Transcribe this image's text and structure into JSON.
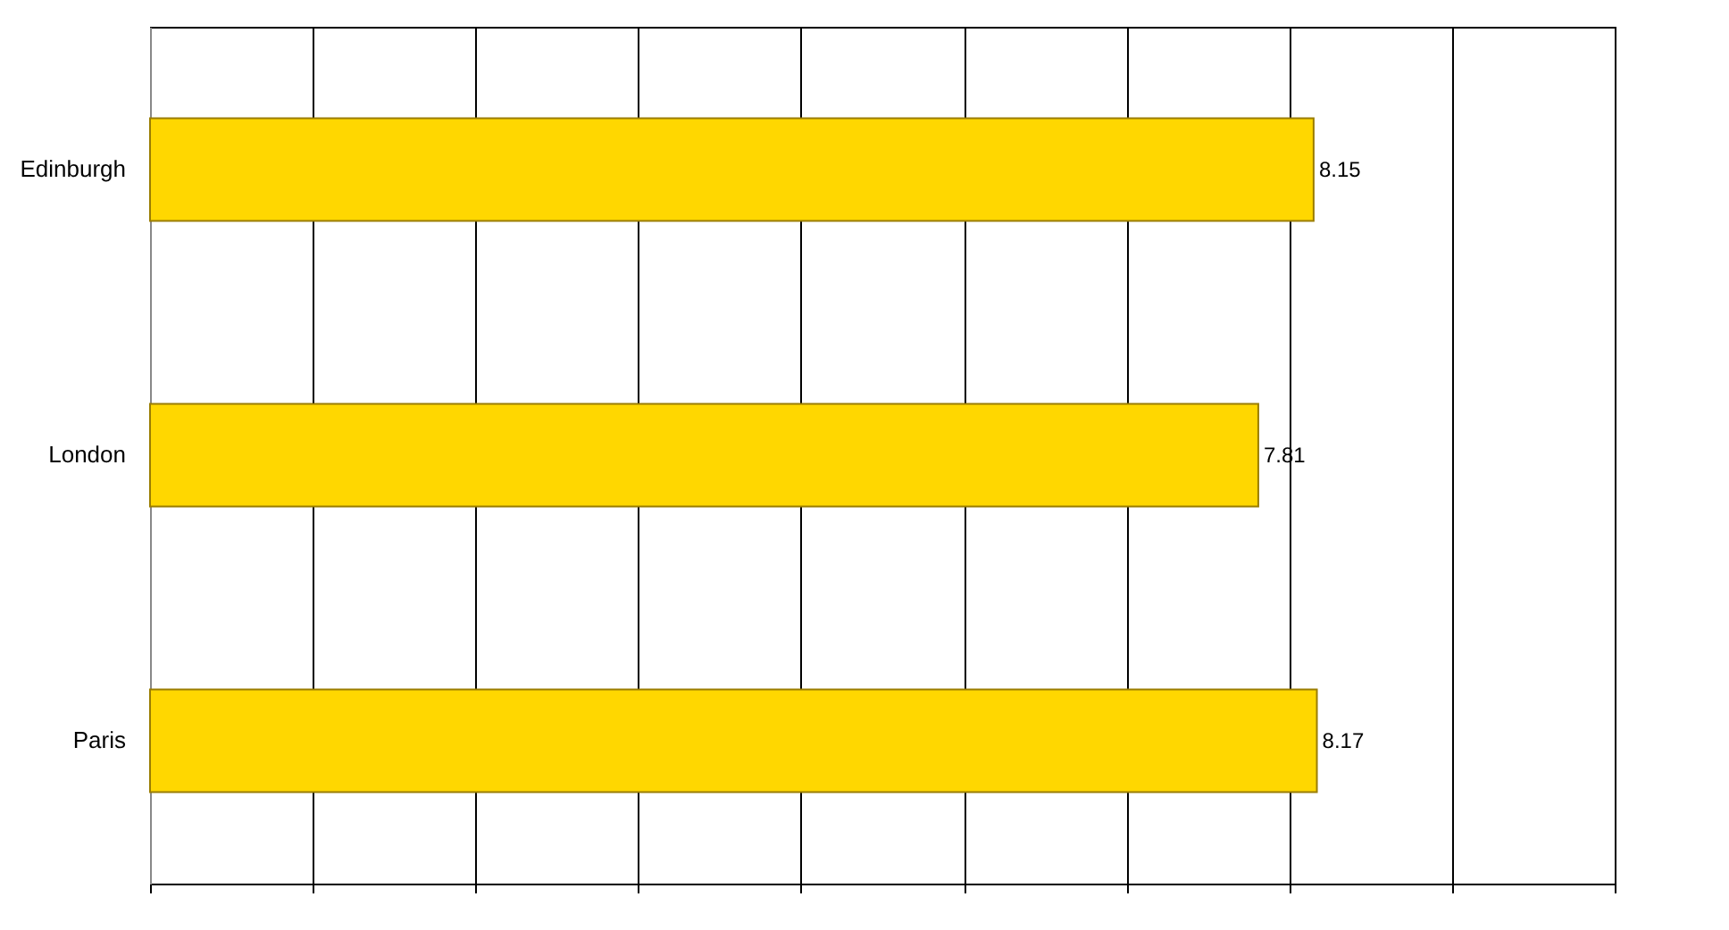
{
  "chart_data": {
    "type": "bar",
    "orientation": "horizontal",
    "categories": [
      "Edinburgh",
      "London",
      "Paris"
    ],
    "values": [
      8.15,
      7.81,
      8.17
    ],
    "color": "#ffd700",
    "xlim": [
      1,
      10
    ],
    "xticks": [
      {
        "value": 1,
        "label": null
      },
      {
        "value": 2,
        "label": null
      },
      {
        "value": 3,
        "label": null
      },
      {
        "value": 4,
        "label": null
      },
      {
        "value": 5,
        "label": null
      },
      {
        "value": 6,
        "label": null
      },
      {
        "value": 7,
        "label": null
      },
      {
        "value": 8,
        "label": null
      },
      {
        "value": 9,
        "label": null
      },
      {
        "value": 10,
        "label": null
      }
    ],
    "grid": "x",
    "tick_labels": "y",
    "data_labels": true
  }
}
